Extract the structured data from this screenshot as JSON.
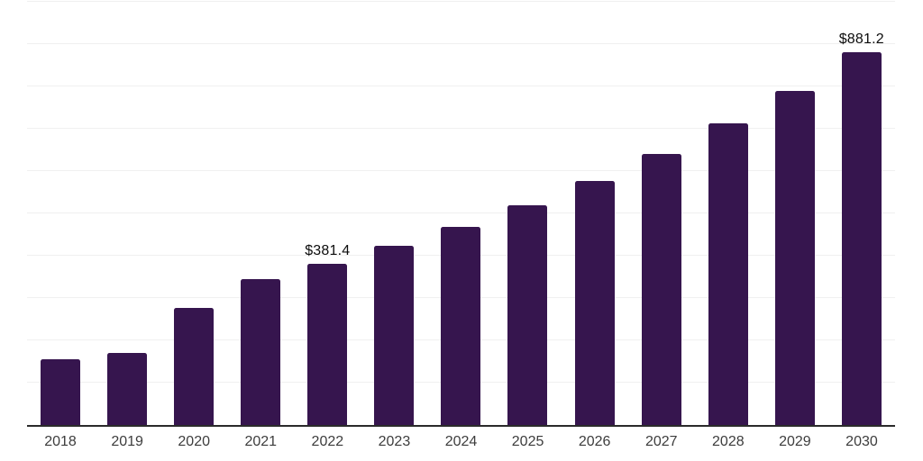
{
  "chart_data": {
    "type": "bar",
    "title": "",
    "xlabel": "",
    "ylabel": "",
    "categories": [
      "2018",
      "2019",
      "2020",
      "2021",
      "2022",
      "2023",
      "2024",
      "2025",
      "2026",
      "2027",
      "2028",
      "2029",
      "2030"
    ],
    "values": [
      156,
      171,
      277,
      344,
      381.4,
      423,
      468,
      520,
      577,
      641,
      712,
      789,
      881.2
    ],
    "data_labels": [
      {
        "index": 4,
        "text": "$381.4"
      },
      {
        "index": 12,
        "text": "$881.2"
      }
    ],
    "ylim": [
      0,
      1000
    ],
    "gridline_interval": 100,
    "grid": "horizontal",
    "legend": "none",
    "colors": {
      "bar": "#36154e",
      "gridline": "#f0f0f0",
      "axis_line": "#2b2b2b",
      "tick_label": "#3d3d3d",
      "data_label": "#0c0c0c",
      "background": "#ffffff"
    }
  }
}
